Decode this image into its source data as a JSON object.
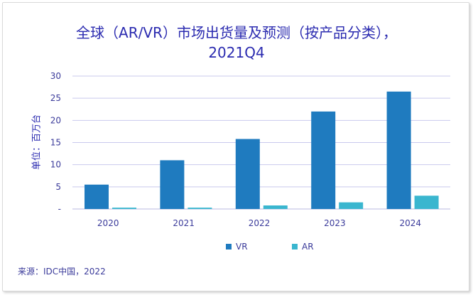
{
  "chart_data": {
    "type": "bar",
    "title": "全球（AR/VR）市场出货量及预测（按产品分类），",
    "subtitle": "2021Q4",
    "ylabel": "单位：百万台",
    "categories": [
      "2020",
      "2021",
      "2022",
      "2023",
      "2024"
    ],
    "series": [
      {
        "name": "VR",
        "color": "#1f7bbf",
        "values": [
          5.5,
          11.0,
          15.8,
          22.0,
          26.5
        ]
      },
      {
        "name": "AR",
        "color": "#3ab6cf",
        "values": [
          0.3,
          0.3,
          0.8,
          1.5,
          3.0
        ]
      }
    ],
    "ylim": [
      0,
      30
    ],
    "yticks": [
      0,
      5,
      10,
      15,
      20,
      25,
      30
    ],
    "ytick_labels": [
      "-",
      "5",
      "10",
      "15",
      "20",
      "25",
      "30"
    ],
    "grid": true,
    "legend_position": "bottom"
  },
  "source": "来源：IDC中国，2022"
}
